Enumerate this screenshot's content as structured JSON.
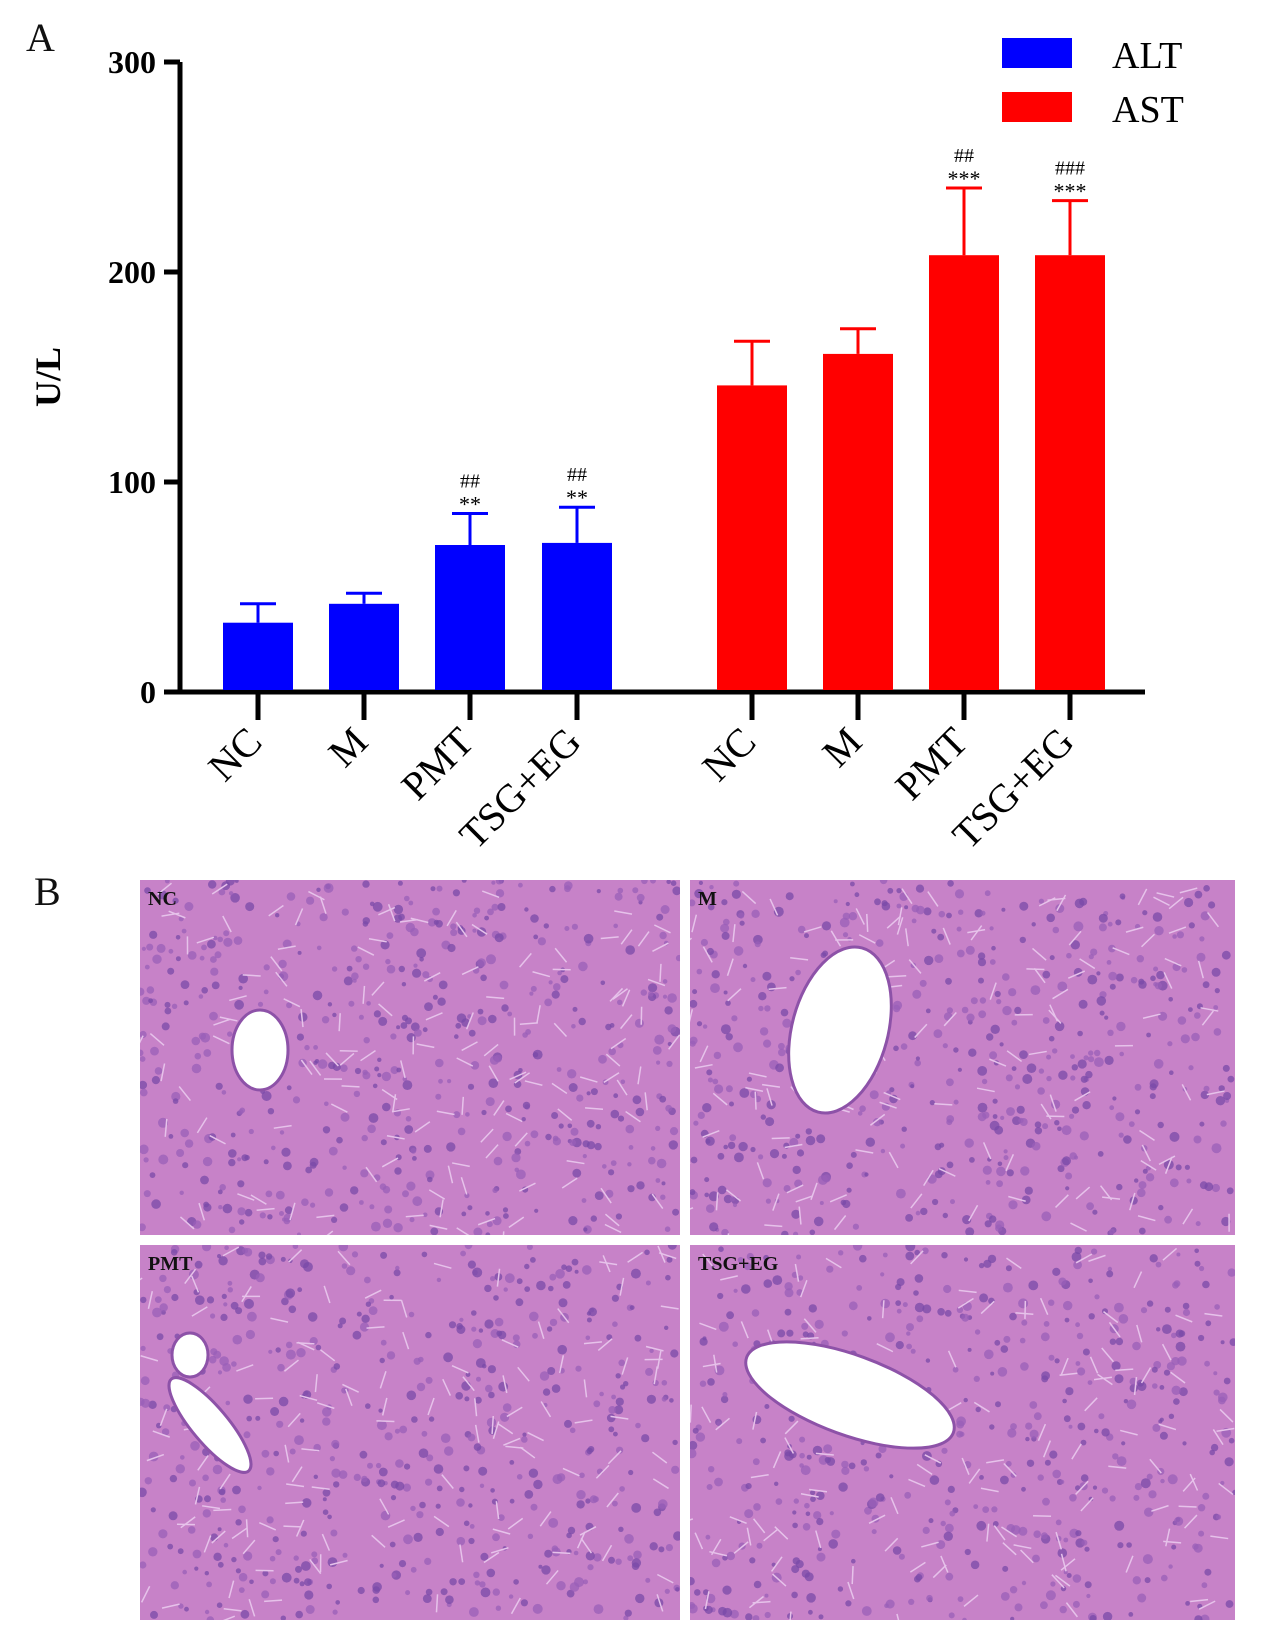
{
  "panel_a": {
    "letter": "A"
  },
  "panel_b": {
    "letter": "B",
    "images": [
      {
        "label": "NC"
      },
      {
        "label": "M"
      },
      {
        "label": "PMT"
      },
      {
        "label": "TSG+EG"
      }
    ]
  },
  "colors": {
    "alt": "#0000ff",
    "ast": "#ff0000",
    "axis": "#000000",
    "tissue_bg": "#c782c8",
    "nuclei": "#7a4aa8"
  },
  "chart_data": {
    "type": "bar",
    "ylabel": "U/L",
    "ylim": [
      0,
      300
    ],
    "yticks": [
      0,
      100,
      200,
      300
    ],
    "legend": {
      "placement": "top-right",
      "entries": [
        "ALT",
        "AST"
      ]
    },
    "groups": [
      {
        "name": "ALT",
        "color": "#0000ff",
        "categories": [
          "NC",
          "M",
          "PMT",
          "TSG+EG"
        ],
        "values": [
          33,
          42,
          70,
          71
        ],
        "errors": [
          9,
          5,
          15,
          17
        ],
        "annotations": [
          [
            "",
            ""
          ],
          [
            "",
            ""
          ],
          [
            "##",
            "**"
          ],
          [
            "##",
            "**"
          ]
        ]
      },
      {
        "name": "AST",
        "color": "#ff0000",
        "categories": [
          "NC",
          "M",
          "PMT",
          "TSG+EG"
        ],
        "values": [
          146,
          161,
          208,
          208
        ],
        "errors": [
          21,
          12,
          32,
          26
        ],
        "annotations": [
          [
            "",
            ""
          ],
          [
            "",
            ""
          ],
          [
            "##",
            "***"
          ],
          [
            "###",
            "***"
          ]
        ]
      }
    ]
  }
}
